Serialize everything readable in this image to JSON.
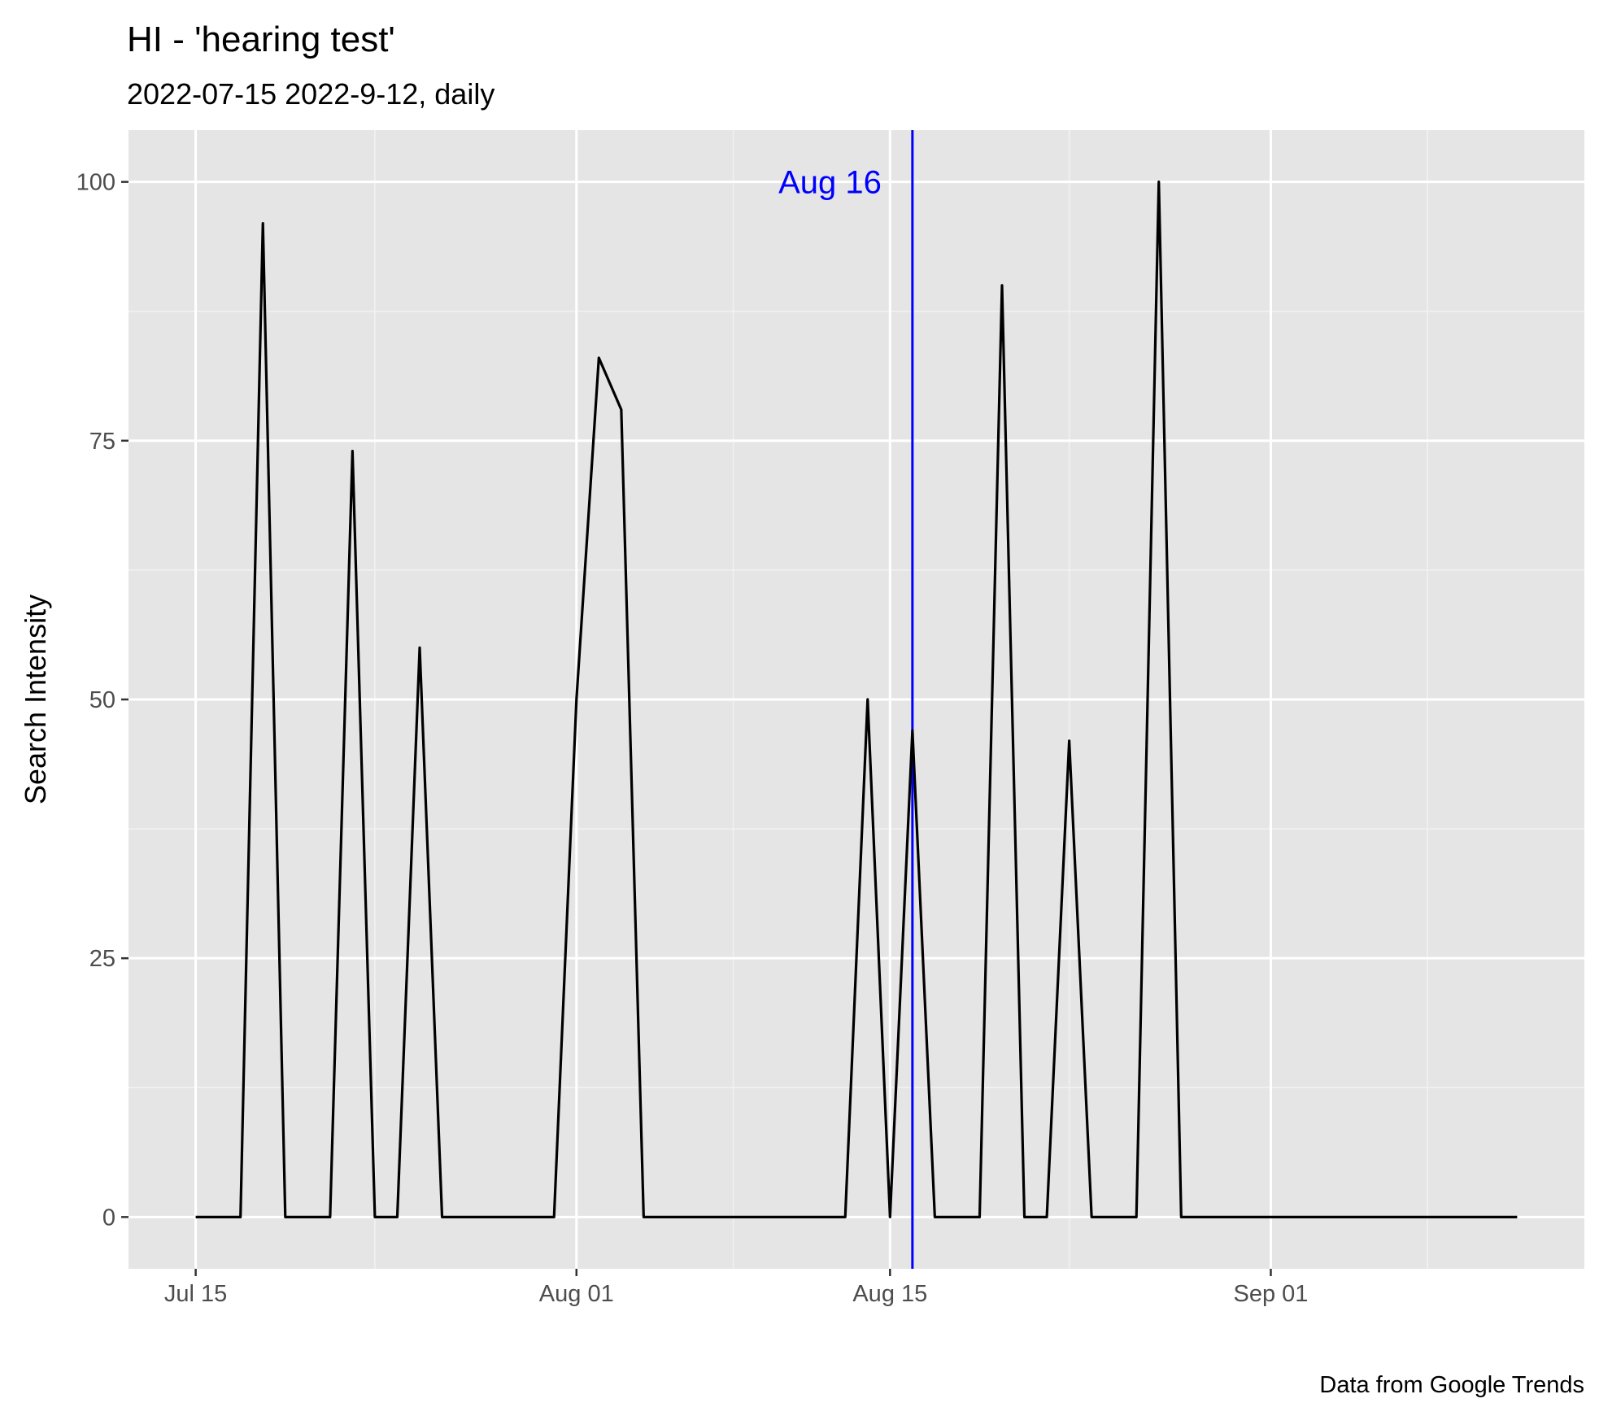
{
  "chart_data": {
    "type": "line",
    "title": "HI  - 'hearing test'",
    "subtitle": "2022-07-15 2022-9-12, daily",
    "caption": "Data from Google Trends",
    "xlabel": "",
    "ylabel": "Search Intensity",
    "xlim": [
      "2022-07-12",
      "2022-09-15"
    ],
    "ylim": [
      -5,
      105
    ],
    "x_ticks": [
      {
        "date": "2022-07-15",
        "label": "Jul 15"
      },
      {
        "date": "2022-08-01",
        "label": "Aug 01"
      },
      {
        "date": "2022-08-15",
        "label": "Aug 15"
      },
      {
        "date": "2022-09-01",
        "label": "Sep 01"
      }
    ],
    "x_minor_breaks": [
      "2022-07-23",
      "2022-08-08",
      "2022-08-23",
      "2022-09-08"
    ],
    "y_ticks": [
      0,
      25,
      50,
      75,
      100
    ],
    "y_minor_breaks": [
      12.5,
      37.5,
      62.5,
      87.5
    ],
    "grid": true,
    "series": [
      {
        "color": "#000000",
        "x": [
          "2022-07-15",
          "2022-07-16",
          "2022-07-17",
          "2022-07-18",
          "2022-07-19",
          "2022-07-20",
          "2022-07-21",
          "2022-07-22",
          "2022-07-23",
          "2022-07-24",
          "2022-07-25",
          "2022-07-26",
          "2022-07-27",
          "2022-07-28",
          "2022-07-29",
          "2022-07-30",
          "2022-07-31",
          "2022-08-01",
          "2022-08-02",
          "2022-08-03",
          "2022-08-04",
          "2022-08-05",
          "2022-08-06",
          "2022-08-07",
          "2022-08-08",
          "2022-08-09",
          "2022-08-10",
          "2022-08-11",
          "2022-08-12",
          "2022-08-13",
          "2022-08-14",
          "2022-08-15",
          "2022-08-16",
          "2022-08-17",
          "2022-08-18",
          "2022-08-19",
          "2022-08-20",
          "2022-08-21",
          "2022-08-22",
          "2022-08-23",
          "2022-08-24",
          "2022-08-25",
          "2022-08-26",
          "2022-08-27",
          "2022-08-28",
          "2022-08-29",
          "2022-08-30",
          "2022-08-31",
          "2022-09-01",
          "2022-09-02",
          "2022-09-03",
          "2022-09-04",
          "2022-09-05",
          "2022-09-06",
          "2022-09-07",
          "2022-09-08",
          "2022-09-09",
          "2022-09-10",
          "2022-09-11",
          "2022-09-12"
        ],
        "values": [
          0,
          0,
          0,
          96,
          0,
          0,
          0,
          74,
          0,
          0,
          55,
          0,
          0,
          0,
          0,
          0,
          0,
          50,
          83,
          78,
          0,
          0,
          0,
          0,
          0,
          0,
          0,
          0,
          0,
          0,
          50,
          0,
          47,
          0,
          0,
          0,
          90,
          0,
          0,
          46,
          0,
          0,
          0,
          100,
          0,
          0,
          0,
          0,
          0,
          0,
          0,
          0,
          0,
          0,
          0,
          0,
          0,
          0,
          0,
          0
        ]
      }
    ],
    "annotations": [
      {
        "type": "vline",
        "x": "2022-08-16",
        "color": "#0000ff",
        "label": "Aug 16",
        "label_y": 100
      }
    ]
  }
}
